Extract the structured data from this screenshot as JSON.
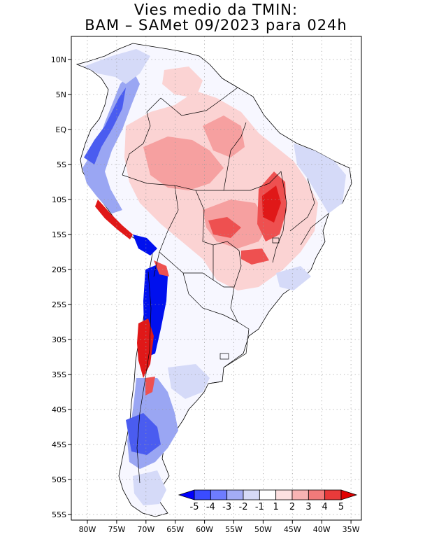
{
  "title_line1": "Vies medio da TMIN:",
  "title_line2": "BAM – SAMet 09/2023  para 024h",
  "lat_labels": [
    "10N",
    "5N",
    "EQ",
    "5S",
    "10S",
    "15S",
    "20S",
    "25S",
    "30S",
    "35S",
    "40S",
    "45S",
    "50S",
    "55S"
  ],
  "lon_labels": [
    "80W",
    "75W",
    "70W",
    "65W",
    "60W",
    "55W",
    "50W",
    "45W",
    "40W",
    "35W"
  ],
  "colorbar": {
    "labels": [
      "-5",
      "-4",
      "-3",
      "-2",
      "-1",
      "1",
      "2",
      "3",
      "4",
      "5"
    ],
    "colors": [
      "#0000ff",
      "#3a4cff",
      "#6e7cff",
      "#a3acf5",
      "#d6daf7",
      "#ffffff",
      "#fde0e0",
      "#f8b4b4",
      "#f27a7a",
      "#e83a3a",
      "#e00000"
    ]
  },
  "colors": {
    "warm_light": "#fbd3d3",
    "warm_mid": "#f6a0a0",
    "warm_strong": "#ee5050",
    "warm_max": "#e01818",
    "cold_light": "#d5daf8",
    "cold_mid": "#9aa6f3",
    "cold_strong": "#4a5cf0",
    "cold_max": "#0010ee"
  }
}
